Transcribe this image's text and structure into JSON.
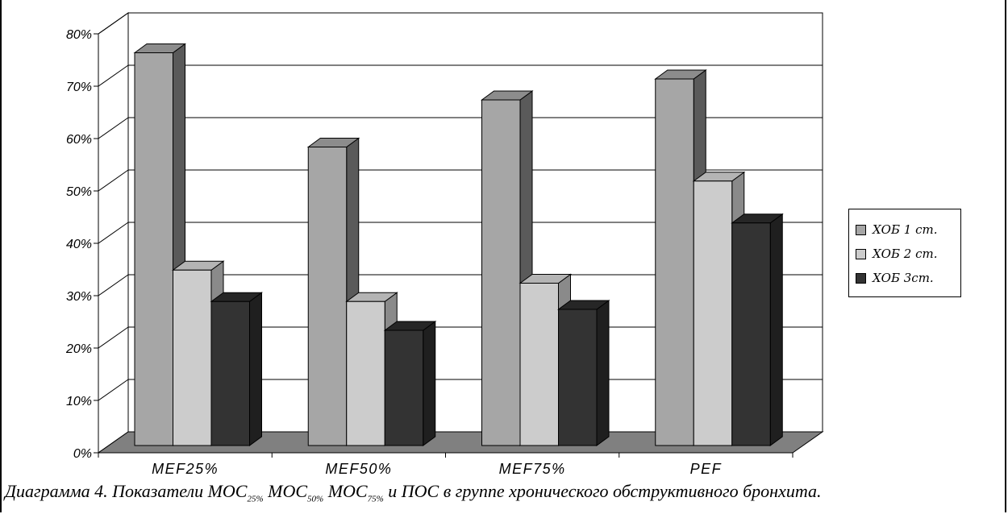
{
  "chart_data": {
    "type": "bar",
    "subtype": "3d-clustered-column",
    "categories": [
      "MEF25%",
      "MEF50%",
      "MEF75%",
      "PEF"
    ],
    "series": [
      {
        "name": "ХОБ 1 ст.",
        "color": "#a6a6a6",
        "values": [
          75,
          57,
          66,
          70
        ]
      },
      {
        "name": "ХОБ 2 ст.",
        "color": "#cccccc",
        "values": [
          33.5,
          27.5,
          31,
          50.5
        ]
      },
      {
        "name": "ХОБ 3ст.",
        "color": "#333333",
        "values": [
          27.5,
          22,
          26,
          42.5
        ]
      }
    ],
    "ylim": [
      0,
      80
    ],
    "yticks": [
      "0%",
      "10%",
      "20%",
      "30%",
      "40%",
      "50%",
      "60%",
      "70%",
      "80%"
    ],
    "grid": true,
    "legend_position": "right"
  },
  "caption": {
    "prefix": "Диаграмма 4. Показатели МОС",
    "sub1": "25%",
    "mid1": " МОС",
    "sub2": "50%",
    "mid2": " МОС",
    "sub3": "75%",
    "suffix": " и ПОС в группе хронического обструктивного бронхита."
  }
}
